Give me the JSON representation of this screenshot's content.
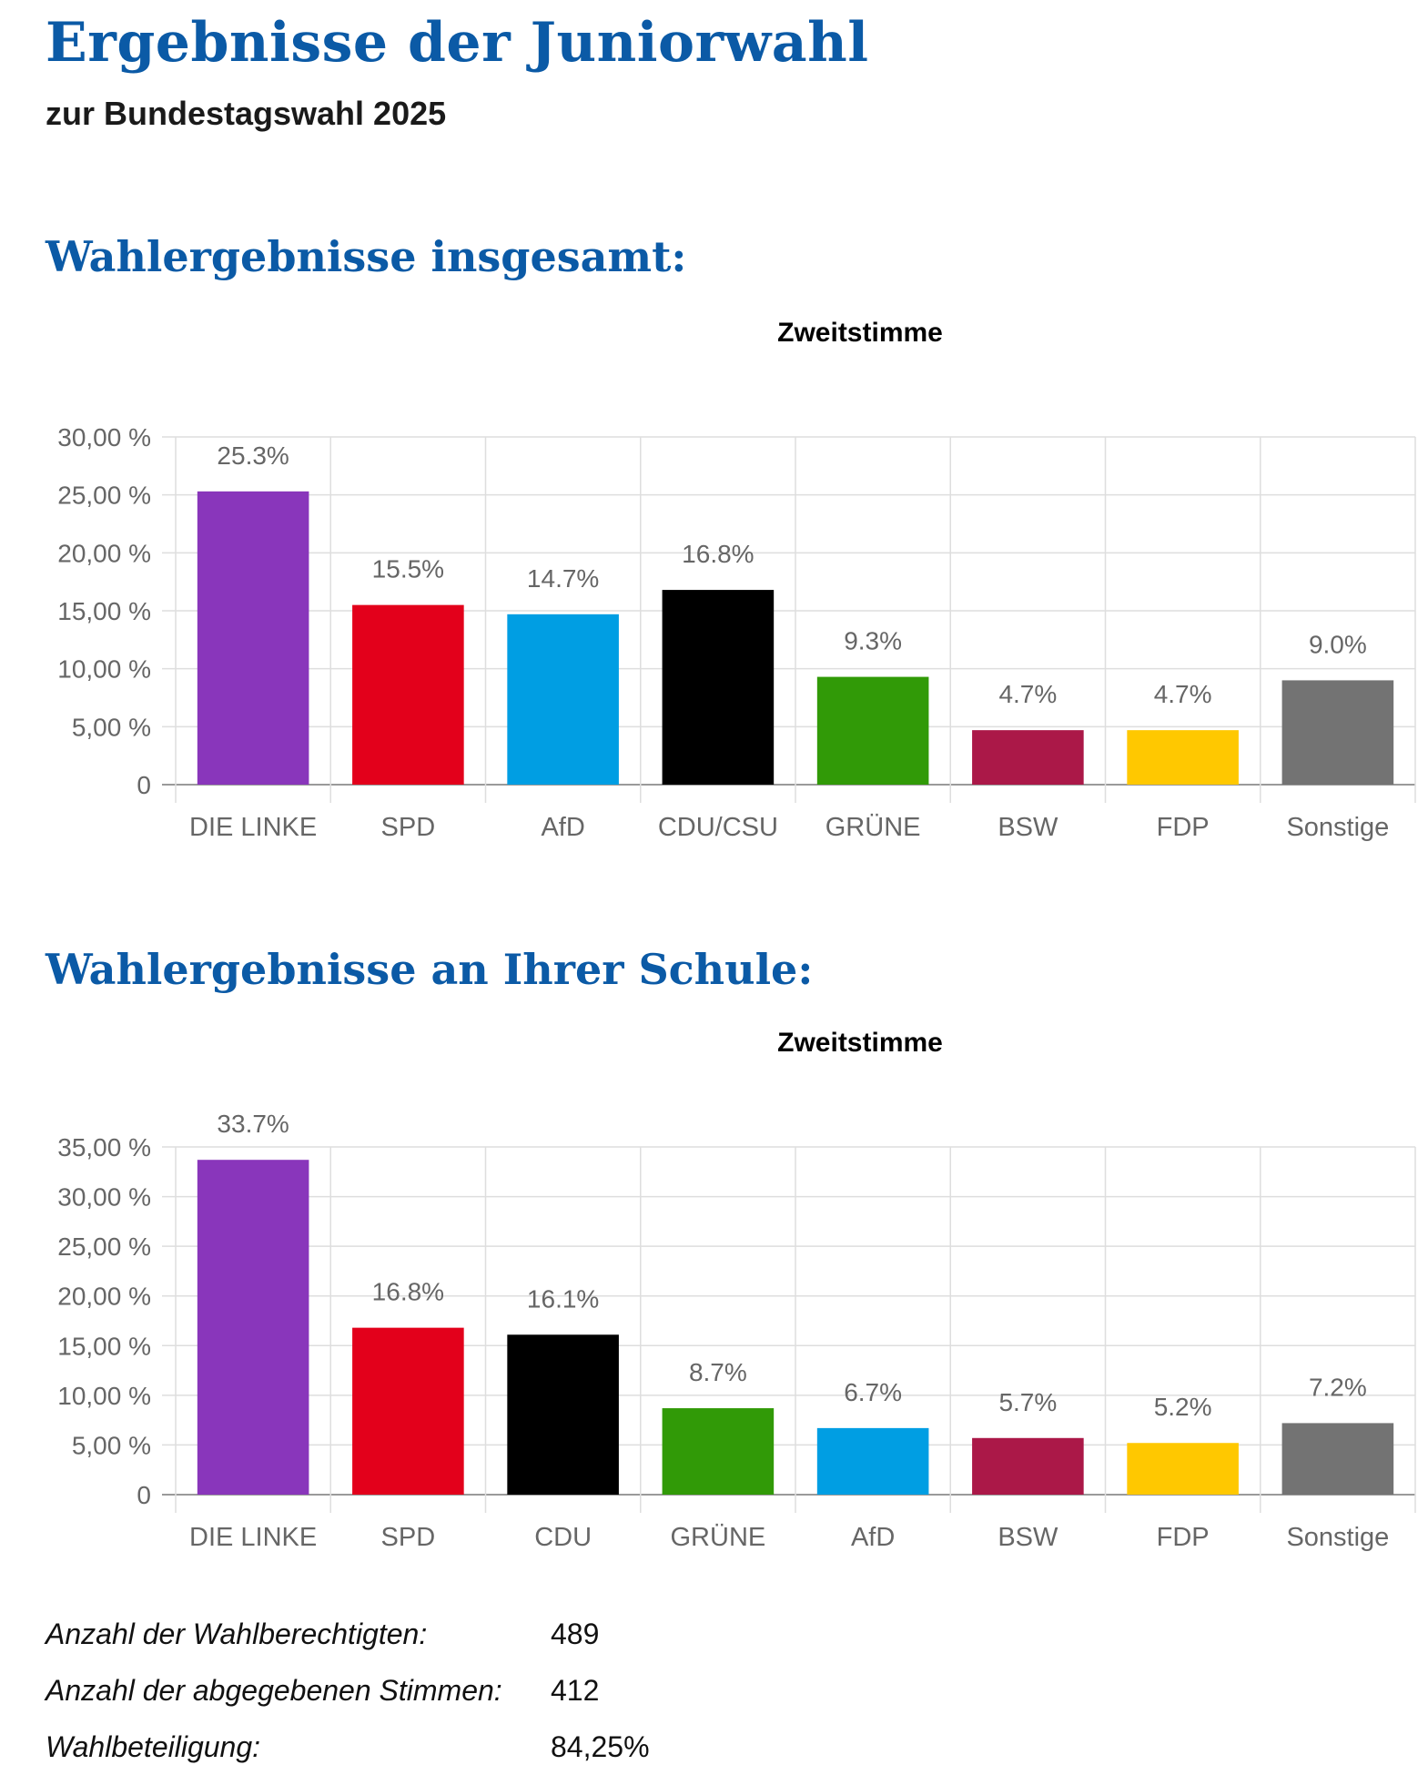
{
  "header": {
    "title": "Ergebnisse der Juniorwahl",
    "subtitle": "zur Bundestagswahl 2025"
  },
  "sections": [
    {
      "heading": "Wahlergebnisse insgesamt:"
    },
    {
      "heading": "Wahlergebnisse an Ihrer Schule:"
    }
  ],
  "chart_data": [
    {
      "type": "bar",
      "title": "Zweitstimme",
      "categories": [
        "DIE LINKE",
        "SPD",
        "AfD",
        "CDU/CSU",
        "GRÜNE",
        "BSW",
        "FDP",
        "Sonstige"
      ],
      "values": [
        25.3,
        15.5,
        14.7,
        16.8,
        9.3,
        4.7,
        4.7,
        9.0
      ],
      "data_labels": [
        "25.3%",
        "15.5%",
        "14.7%",
        "16.8%",
        "9.3%",
        "4.7%",
        "4.7%",
        "9.0%"
      ],
      "colors": [
        "#8936bb",
        "#e3001b",
        "#009ee3",
        "#000000",
        "#319a07",
        "#ab1848",
        "#ffc800",
        "#737373"
      ],
      "ylim": [
        0,
        30
      ],
      "yticks": [
        0,
        5,
        10,
        15,
        20,
        25,
        30
      ],
      "ytick_labels": [
        "0",
        "5,00 %",
        "10,00 %",
        "15,00 %",
        "20,00 %",
        "25,00 %",
        "30,00 %"
      ],
      "grid": true,
      "xlabel": "",
      "ylabel": ""
    },
    {
      "type": "bar",
      "title": "Zweitstimme",
      "categories": [
        "DIE LINKE",
        "SPD",
        "CDU",
        "GRÜNE",
        "AfD",
        "BSW",
        "FDP",
        "Sonstige"
      ],
      "values": [
        33.7,
        16.8,
        16.1,
        8.7,
        6.7,
        5.7,
        5.2,
        7.2
      ],
      "data_labels": [
        "33.7%",
        "16.8%",
        "16.1%",
        "8.7%",
        "6.7%",
        "5.7%",
        "5.2%",
        "7.2%"
      ],
      "colors": [
        "#8936bb",
        "#e3001b",
        "#000000",
        "#319a07",
        "#009ee3",
        "#ab1848",
        "#ffc800",
        "#737373"
      ],
      "ylim": [
        0,
        35
      ],
      "yticks": [
        0,
        5,
        10,
        15,
        20,
        25,
        30,
        35
      ],
      "ytick_labels": [
        "0",
        "5,00 %",
        "10,00 %",
        "15,00 %",
        "20,00 %",
        "25,00 %",
        "30,00 %",
        "35,00 %"
      ],
      "grid": true,
      "xlabel": "",
      "ylabel": ""
    }
  ],
  "stats": [
    {
      "label": "Anzahl der Wahlberechtigten:",
      "value": "489"
    },
    {
      "label": "Anzahl der abgegebenen Stimmen:",
      "value": "412"
    },
    {
      "label": "Wahlbeteiligung:",
      "value": "84,25%"
    }
  ]
}
